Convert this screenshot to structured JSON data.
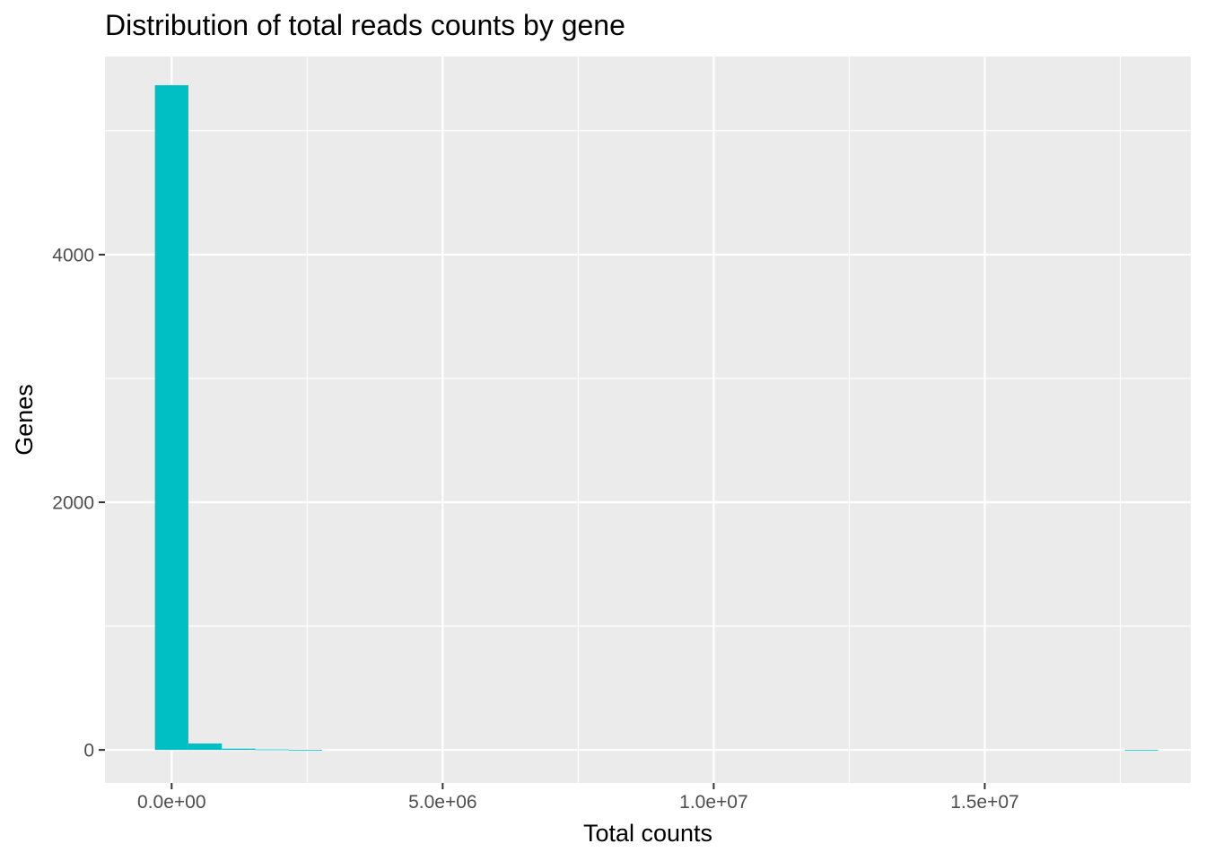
{
  "chart_data": {
    "type": "bar",
    "title": "Distribution of total reads counts by gene",
    "xlabel": "Total counts",
    "ylabel": "Genes",
    "x_ticks": [
      {
        "value": 0,
        "label": "0.0e+00"
      },
      {
        "value": 5000000,
        "label": "5.0e+06"
      },
      {
        "value": 10000000,
        "label": "1.0e+07"
      },
      {
        "value": 15000000,
        "label": "1.5e+07"
      }
    ],
    "y_ticks": [
      {
        "value": 0,
        "label": "0"
      },
      {
        "value": 2000,
        "label": "2000"
      },
      {
        "value": 4000,
        "label": "4000"
      }
    ],
    "xlim": [
      -1230000,
      18800000
    ],
    "ylim": [
      -267,
      5600
    ],
    "bin_width": 617000,
    "bins": [
      {
        "x_start": -308500,
        "x_end": 308500,
        "count": 5368
      },
      {
        "x_start": 308500,
        "x_end": 925500,
        "count": 52
      },
      {
        "x_start": 925500,
        "x_end": 1542500,
        "count": 10
      },
      {
        "x_start": 1542500,
        "x_end": 2159500,
        "count": 4
      },
      {
        "x_start": 2159500,
        "x_end": 2776500,
        "count": 1
      },
      {
        "x_start": 17582500,
        "x_end": 18199500,
        "count": 1
      }
    ],
    "fill_color": "#00BFC4",
    "panel_background": "#EBEBEB",
    "grid_color": "#FFFFFF",
    "grid": true,
    "legend": "none"
  }
}
